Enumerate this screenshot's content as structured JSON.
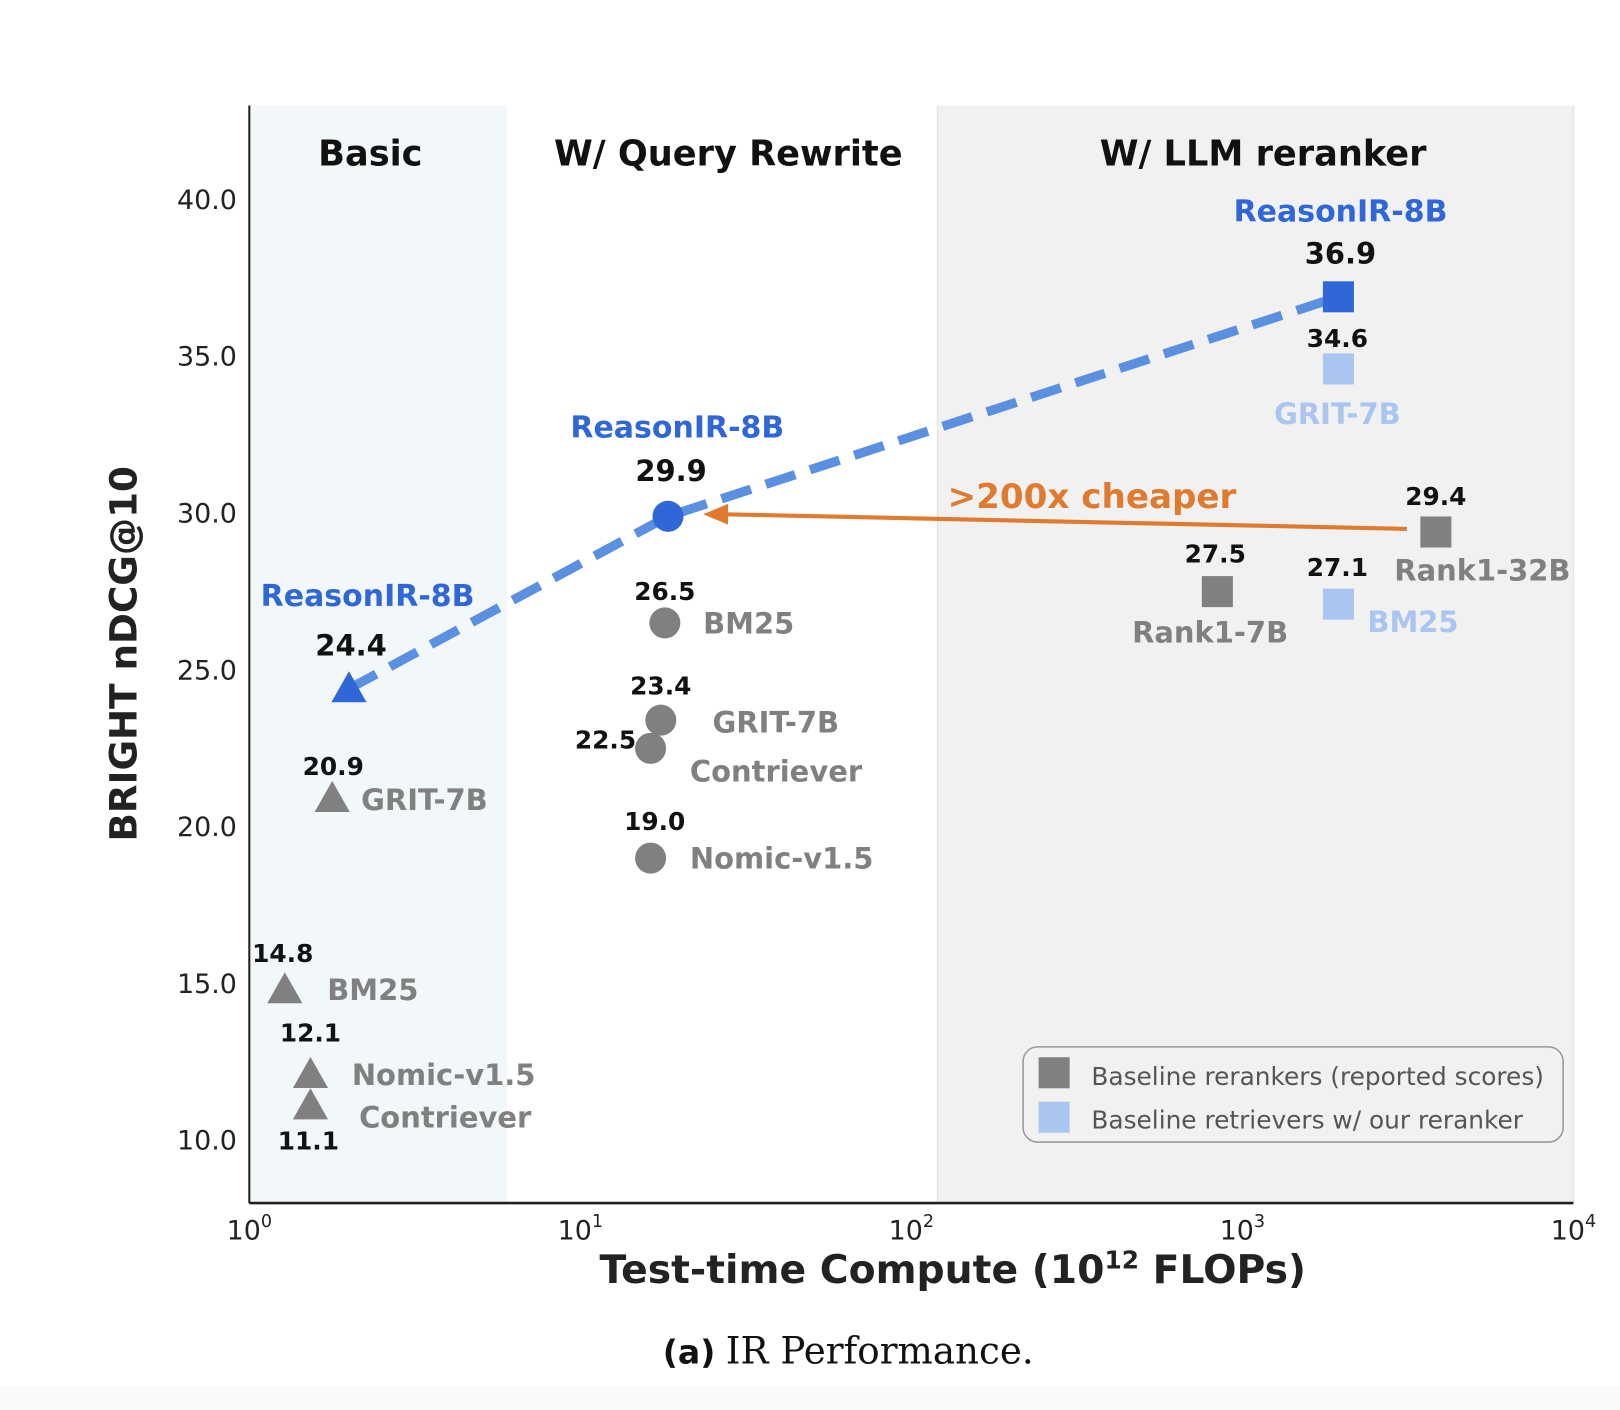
{
  "chart_data": {
    "type": "scatter",
    "xlabel": "Test-time Compute (10",
    "xlabel_sup": "12",
    "xlabel_tail": " FLOPs)",
    "ylabel": "BRIGHT nDCG@10",
    "xscale": "log",
    "xlim": [
      1,
      10000
    ],
    "ylim": [
      8,
      43
    ],
    "grid": false,
    "x_ticks": [
      {
        "base": "10",
        "exp": "0",
        "value": 1
      },
      {
        "base": "10",
        "exp": "1",
        "value": 10
      },
      {
        "base": "10",
        "exp": "2",
        "value": 100
      },
      {
        "base": "10",
        "exp": "3",
        "value": 1000
      },
      {
        "base": "10",
        "exp": "4",
        "value": 10000
      }
    ],
    "y_ticks": [
      "10.0",
      "15.0",
      "20.0",
      "25.0",
      "30.0",
      "35.0",
      "40.0"
    ],
    "regions": [
      {
        "title": "Basic",
        "x_range": [
          1,
          6
        ],
        "color": "#f2f7fa"
      },
      {
        "title": "W/ Query Rewrite",
        "x_range": [
          6,
          120
        ],
        "color": "#ffffff"
      },
      {
        "title": "W/ LLM reranker",
        "x_range": [
          120,
          10000
        ],
        "color": "#f1f1f1"
      }
    ],
    "points": [
      {
        "group": "Basic",
        "name": "ReasonIR-8B",
        "x": 2.0,
        "y": 24.4,
        "label": "24.4",
        "marker": "triangle",
        "color": "#2f67d8"
      },
      {
        "group": "Basic",
        "name": "GRIT-7B",
        "x": 1.78,
        "y": 20.9,
        "label": "20.9",
        "marker": "triangle",
        "color": "#808080"
      },
      {
        "group": "Basic",
        "name": "BM25",
        "x": 1.28,
        "y": 14.8,
        "label": "14.8",
        "marker": "triangle",
        "color": "#808080"
      },
      {
        "group": "Basic",
        "name": "Nomic-v1.5",
        "x": 1.53,
        "y": 12.1,
        "label": "12.1",
        "marker": "triangle",
        "color": "#808080"
      },
      {
        "group": "Basic",
        "name": "Contriever",
        "x": 1.53,
        "y": 11.1,
        "label": "11.1",
        "marker": "triangle",
        "color": "#808080"
      },
      {
        "group": "W/ Query Rewrite",
        "name": "ReasonIR-8B",
        "x": 18.4,
        "y": 29.9,
        "label": "29.9",
        "marker": "circle",
        "color": "#2f67d8"
      },
      {
        "group": "W/ Query Rewrite",
        "name": "BM25",
        "x": 18.0,
        "y": 26.5,
        "label": "26.5",
        "marker": "circle",
        "color": "#808080"
      },
      {
        "group": "W/ Query Rewrite",
        "name": "GRIT-7B",
        "x": 17.5,
        "y": 23.4,
        "label": "23.4",
        "marker": "circle",
        "color": "#808080"
      },
      {
        "group": "W/ Query Rewrite",
        "name": "Contriever",
        "x": 16.3,
        "y": 22.5,
        "label": "22.5",
        "marker": "circle",
        "color": "#808080"
      },
      {
        "group": "W/ Query Rewrite",
        "name": "Nomic-v1.5",
        "x": 16.3,
        "y": 19.0,
        "label": "19.0",
        "marker": "circle",
        "color": "#808080"
      },
      {
        "group": "W/ LLM reranker",
        "name": "ReasonIR-8B",
        "x": 1950,
        "y": 36.9,
        "label": "36.9",
        "marker": "square",
        "color": "#2f67d8"
      },
      {
        "group": "W/ LLM reranker",
        "name": "GRIT-7B",
        "x": 1950,
        "y": 34.6,
        "label": "34.6",
        "marker": "square",
        "color": "#a9c5f0"
      },
      {
        "group": "W/ LLM reranker",
        "name": "BM25",
        "x": 1950,
        "y": 27.1,
        "label": "27.1",
        "marker": "square",
        "color": "#a9c5f0"
      },
      {
        "group": "W/ LLM reranker",
        "name": "Rank1-7B",
        "x": 840,
        "y": 27.5,
        "label": "27.5",
        "marker": "square",
        "color": "#808080"
      },
      {
        "group": "W/ LLM reranker",
        "name": "Rank1-32B",
        "x": 3840,
        "y": 29.4,
        "label": "29.4",
        "marker": "square",
        "color": "#808080"
      }
    ],
    "reasonir_line": {
      "color": "#5b8fe0",
      "style": "dashed",
      "points": [
        [
          2.0,
          24.4
        ],
        [
          18.4,
          29.9
        ],
        [
          1950,
          36.9
        ]
      ]
    },
    "annotation": {
      "text": ">200x cheaper",
      "color": "#e07a2e",
      "from": [
        3840,
        29.4
      ],
      "to": [
        18.4,
        29.9
      ]
    },
    "legend": {
      "placement": "bottom-right",
      "entries": [
        {
          "label": "Baseline rerankers (reported scores)",
          "color": "#808080",
          "marker": "square"
        },
        {
          "label": "Baseline retrievers w/ our reranker",
          "color": "#a9c5f0",
          "marker": "square"
        }
      ]
    }
  },
  "caption": {
    "prefix": "(a)",
    "text": "IR Performance."
  }
}
